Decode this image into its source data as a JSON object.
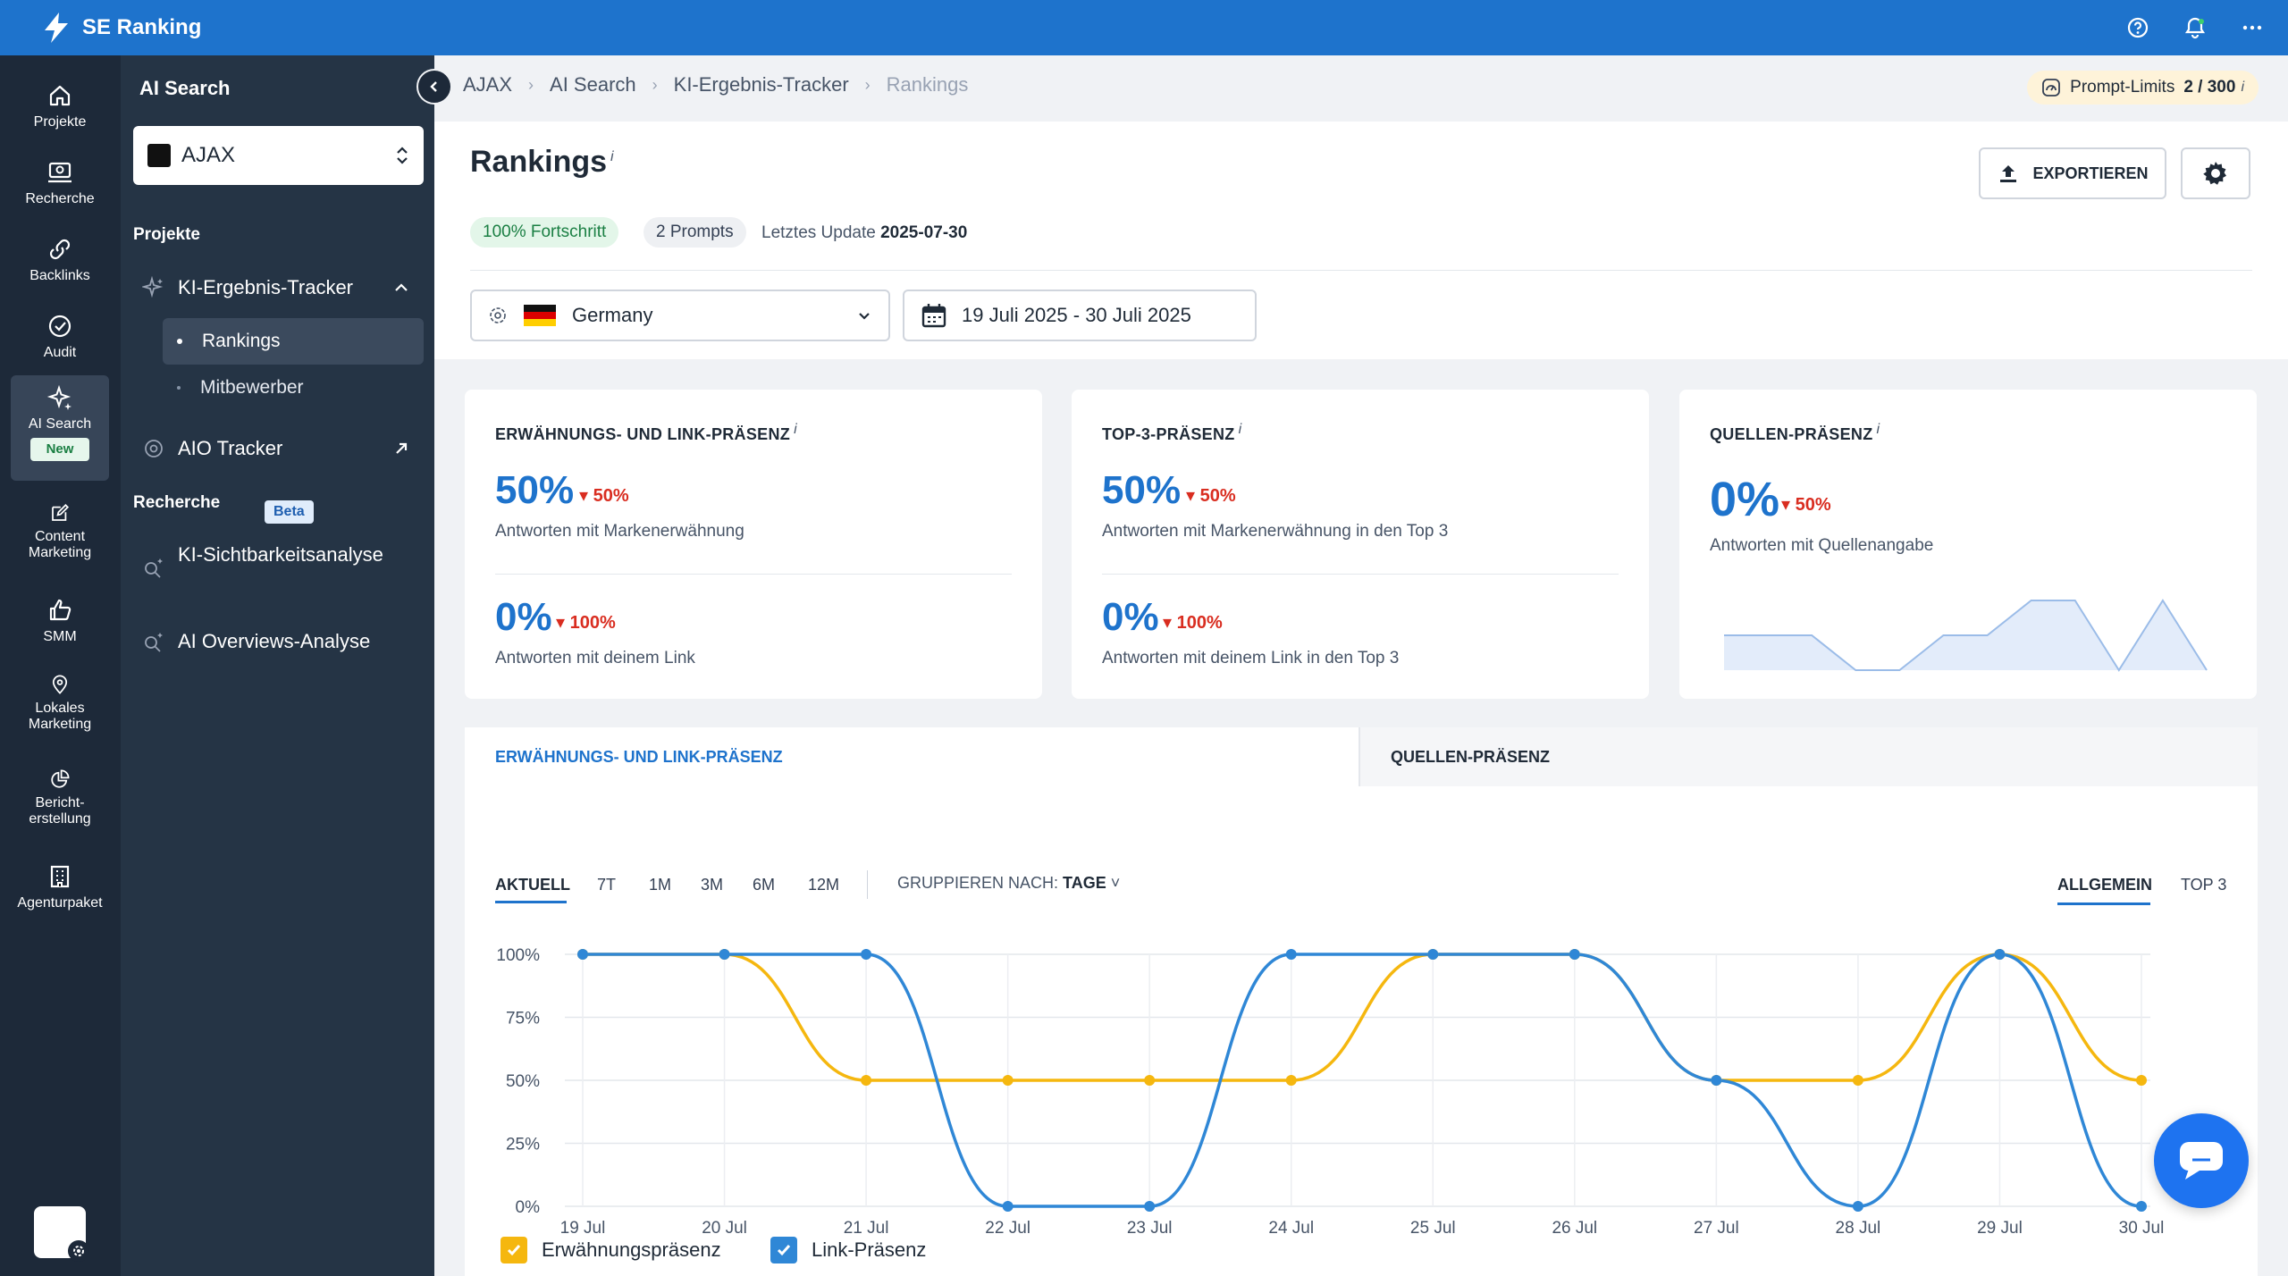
{
  "app": {
    "name": "SE Ranking"
  },
  "rail": [
    {
      "label": "Projekte"
    },
    {
      "label": "Recherche"
    },
    {
      "label": "Backlinks"
    },
    {
      "label": "Audit"
    },
    {
      "label": "AI Search",
      "badge": "New"
    },
    {
      "label": "Content Marketing"
    },
    {
      "label": "SMM"
    },
    {
      "label": "Lokales Marketing"
    },
    {
      "label": "Bericht-erstellung"
    },
    {
      "label": "Agenturpaket"
    }
  ],
  "panel": {
    "title": "AI Search",
    "project": "AJAX",
    "projects_label": "Projekte",
    "tracker": "KI-Ergebnis-Tracker",
    "sub_rankings": "Rankings",
    "sub_competitors": "Mitbewerber",
    "aio_tracker": "AIO Tracker",
    "research_label": "Recherche",
    "visibility": "KI-Sichtbarkeitsanalyse",
    "beta": "Beta",
    "overviews": "AI Overviews-Analyse"
  },
  "breadcrumb": [
    "AJAX",
    "AI Search",
    "KI-Ergebnis-Tracker",
    "Rankings"
  ],
  "limits": {
    "label": "Prompt-Limits",
    "value": "2 / 300",
    "info": "i"
  },
  "page": {
    "title": "Rankings",
    "info": "i",
    "progress": "100% Fortschritt",
    "prompts": "2 Prompts",
    "last_update_label": "Letztes Update",
    "last_update": "2025-07-30",
    "export": "EXPORTIEREN",
    "country": "Germany",
    "date_range": "19 Juli 2025 - 30 Juli 2025"
  },
  "cards": [
    {
      "title": "ERWÄHNUNGS- UND LINK-PRÄSENZ",
      "m1": {
        "value": "50%",
        "delta": "50%",
        "sub": "Antworten mit Markenerwähnung"
      },
      "m2": {
        "value": "0%",
        "delta": "100%",
        "sub": "Antworten mit deinem Link"
      }
    },
    {
      "title": "TOP-3-PRÄSENZ",
      "m1": {
        "value": "50%",
        "delta": "50%",
        "sub": "Antworten mit Markenerwähnung in den Top 3"
      },
      "m2": {
        "value": "0%",
        "delta": "100%",
        "sub": "Antworten mit deinem Link in den Top 3"
      }
    },
    {
      "title": "QUELLEN-PRÄSENZ",
      "m1": {
        "value": "0%",
        "delta": "50%",
        "sub": "Antworten mit Quellenangabe"
      }
    }
  ],
  "sparkline": [
    20,
    20,
    20,
    0,
    0,
    20,
    20,
    40,
    40,
    0,
    40,
    0
  ],
  "tabs": {
    "a": "ERWÄHNUNGS- UND LINK-PRÄSENZ",
    "b": "QUELLEN-PRÄSENZ"
  },
  "periods": [
    "AKTUELL",
    "7T",
    "1M",
    "3M",
    "6M",
    "12M"
  ],
  "group": {
    "label": "GRUPPIEREN NACH:",
    "value": "TAGE"
  },
  "views": [
    "ALLGEMEIN",
    "TOP 3"
  ],
  "colors": {
    "brand": "#1e73cc",
    "mention": "#f5b70f",
    "link": "#2f87d6"
  },
  "chart_data": {
    "type": "line",
    "categories": [
      "19 Jul",
      "20 Jul",
      "21 Jul",
      "22 Jul",
      "23 Jul",
      "24 Jul",
      "25 Jul",
      "26 Jul",
      "27 Jul",
      "28 Jul",
      "29 Jul",
      "30 Jul"
    ],
    "yticks": [
      "0%",
      "25%",
      "50%",
      "75%",
      "100%"
    ],
    "ylim": [
      0,
      100
    ],
    "series": [
      {
        "name": "Erwähnungspräsenz",
        "color": "#f5b70f",
        "values": [
          100,
          100,
          50,
          50,
          50,
          50,
          100,
          100,
          50,
          50,
          100,
          50
        ]
      },
      {
        "name": "Link-Präsenz",
        "color": "#2f87d6",
        "values": [
          100,
          100,
          100,
          0,
          0,
          100,
          100,
          100,
          50,
          0,
          100,
          0
        ]
      }
    ]
  }
}
